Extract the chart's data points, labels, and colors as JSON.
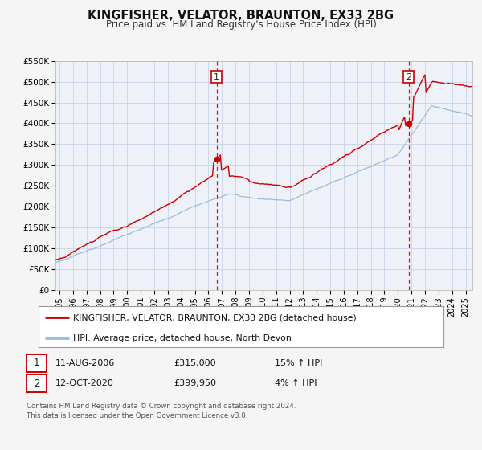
{
  "title": "KINGFISHER, VELATOR, BRAUNTON, EX33 2BG",
  "subtitle": "Price paid vs. HM Land Registry's House Price Index (HPI)",
  "ylim": [
    0,
    550000
  ],
  "yticks": [
    0,
    50000,
    100000,
    150000,
    200000,
    250000,
    300000,
    350000,
    400000,
    450000,
    500000,
    550000
  ],
  "ytick_labels": [
    "£0",
    "£50K",
    "£100K",
    "£150K",
    "£200K",
    "£250K",
    "£300K",
    "£350K",
    "£400K",
    "£450K",
    "£500K",
    "£550K"
  ],
  "xlim_start": 1994.7,
  "xlim_end": 2025.5,
  "xticks": [
    1995,
    1996,
    1997,
    1998,
    1999,
    2000,
    2001,
    2002,
    2003,
    2004,
    2005,
    2006,
    2007,
    2008,
    2009,
    2010,
    2011,
    2012,
    2013,
    2014,
    2015,
    2016,
    2017,
    2018,
    2019,
    2020,
    2021,
    2022,
    2023,
    2024,
    2025
  ],
  "property_color": "#cc0000",
  "hpi_color": "#99bbdd",
  "marker1_x": 2006.614,
  "marker1_y": 315000,
  "marker2_x": 2020.789,
  "marker2_y": 399950,
  "legend_property": "KINGFISHER, VELATOR, BRAUNTON, EX33 2BG (detached house)",
  "legend_hpi": "HPI: Average price, detached house, North Devon",
  "note1_date": "11-AUG-2006",
  "note1_price": "£315,000",
  "note1_hpi": "15% ↑ HPI",
  "note2_date": "12-OCT-2020",
  "note2_price": "£399,950",
  "note2_hpi": "4% ↑ HPI",
  "footer": "Contains HM Land Registry data © Crown copyright and database right 2024.\nThis data is licensed under the Open Government Licence v3.0.",
  "background_color": "#f5f5f5",
  "plot_bg_color": "#eef2f8",
  "grid_color": "#c8d4e8"
}
